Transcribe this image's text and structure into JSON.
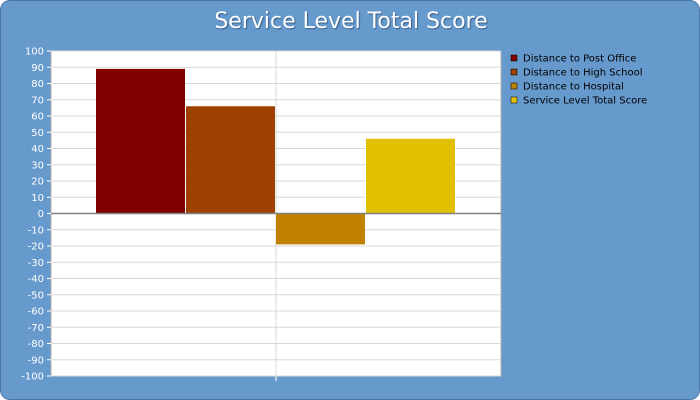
{
  "chart_data": {
    "type": "bar",
    "title": "Service Level Total Score",
    "xlabel": "",
    "ylabel": "",
    "ylim": [
      -100,
      100
    ],
    "ytick_step": 10,
    "grid": true,
    "legend_position": "right",
    "categories": [
      ""
    ],
    "series": [
      {
        "name": "Distance to Post Office",
        "values": [
          89
        ],
        "color": "#800000"
      },
      {
        "name": "Distance to High School",
        "values": [
          66
        ],
        "color": "#a04000"
      },
      {
        "name": "Distance to Hospital",
        "values": [
          -19
        ],
        "color": "#c08000"
      },
      {
        "name": "Service Level Total Score",
        "values": [
          46
        ],
        "color": "#e0c000"
      }
    ]
  },
  "colors": {
    "background": "#6699cc",
    "plot_area": "#ffffff",
    "grid": "#d8d8d8",
    "zero_line": "#808080"
  }
}
